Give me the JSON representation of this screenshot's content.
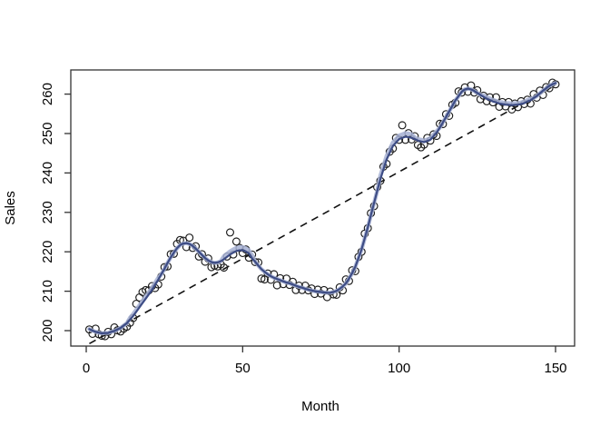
{
  "chart_data": {
    "type": "scatter",
    "title": "",
    "xlabel": "Month",
    "ylabel": "Sales",
    "x_ticks": [
      0,
      50,
      100,
      150
    ],
    "y_ticks": [
      200,
      210,
      220,
      230,
      240,
      250,
      260
    ],
    "xlim": [
      -5,
      156
    ],
    "ylim": [
      196,
      266
    ],
    "grid": "off",
    "legend": "none",
    "x_start_month": 1,
    "n_points": 150,
    "sales": [
      200.3,
      199.2,
      200.5,
      199.1,
      198.7,
      198.6,
      199.7,
      199.1,
      200.8,
      200.1,
      199.8,
      200.5,
      201.0,
      202.0,
      203.2,
      206.8,
      208.4,
      209.8,
      210.3,
      210.2,
      211.3,
      210.8,
      211.7,
      213.7,
      216.1,
      216.3,
      219.4,
      219.5,
      222.0,
      223.0,
      222.8,
      221.2,
      223.6,
      221.0,
      221.4,
      218.8,
      219.4,
      217.5,
      218.3,
      216.1,
      216.5,
      216.3,
      216.8,
      216.0,
      218.8,
      224.9,
      219.3,
      222.6,
      221.0,
      219.7,
      220.6,
      218.5,
      219.3,
      217.4,
      217.3,
      213.2,
      213.0,
      214.5,
      212.9,
      214.3,
      211.5,
      213.3,
      211.8,
      213.2,
      211.6,
      212.4,
      210.3,
      211.4,
      210.3,
      211.4,
      210.2,
      210.7,
      209.3,
      210.4,
      209.4,
      210.3,
      208.5,
      209.9,
      209.2,
      209.1,
      211.0,
      210.2,
      213.0,
      212.6,
      215.3,
      215.1,
      218.7,
      220.0,
      224.6,
      226.0,
      229.8,
      231.6,
      236.4,
      238.0,
      241.6,
      242.3,
      245.4,
      246.2,
      248.9,
      248.4,
      252.1,
      248.4,
      250.1,
      248.5,
      249.3,
      247.1,
      246.5,
      247.2,
      248.9,
      248.2,
      249.8,
      249.4,
      252.5,
      252.4,
      254.9,
      254.5,
      257.3,
      257.8,
      260.7,
      260.4,
      261.7,
      260.6,
      262.2,
      260.4,
      261.0,
      258.7,
      259.6,
      258.2,
      259.2,
      257.9,
      259.2,
      256.8,
      258.0,
      256.9,
      258.0,
      256.1,
      257.6,
      256.7,
      258.2,
      257.5,
      258.6,
      257.6,
      260.0,
      259.1,
      260.9,
      259.8,
      261.8,
      261.5,
      262.9,
      262.5
    ],
    "loess_smooth": [
      200.4,
      200.0,
      199.7,
      199.5,
      199.3,
      199.4,
      199.4,
      199.7,
      199.9,
      200.3,
      200.7,
      201.3,
      201.9,
      202.8,
      203.7,
      204.8,
      205.9,
      207.0,
      208.1,
      209.2,
      210.3,
      211.6,
      212.9,
      214.3,
      215.7,
      217.2,
      218.6,
      219.8,
      220.9,
      221.7,
      222.1,
      222.2,
      222.0,
      221.5,
      220.8,
      220.0,
      219.2,
      218.4,
      217.8,
      217.4,
      217.2,
      217.3,
      217.6,
      218.1,
      218.7,
      219.3,
      219.8,
      220.2,
      220.4,
      220.4,
      220.1,
      219.6,
      218.3,
      217.5,
      216.5,
      215.6,
      214.9,
      214.3,
      213.8,
      213.4,
      213.1,
      212.8,
      212.5,
      212.2,
      212.0,
      211.7,
      211.4,
      211.1,
      210.9,
      210.6,
      210.4,
      210.2,
      210.0,
      209.9,
      209.8,
      209.7,
      209.6,
      209.6,
      209.8,
      210.1,
      210.6,
      211.2,
      212.0,
      213.2,
      214.6,
      216.2,
      218.4,
      220.6,
      223.4,
      226.2,
      229.3,
      232.4,
      235.4,
      238.4,
      240.9,
      243.4,
      245.1,
      246.8,
      247.7,
      248.6,
      248.9,
      249.2,
      249.1,
      248.9,
      248.6,
      248.2,
      248.0,
      247.8,
      248.1,
      248.4,
      249.3,
      250.2,
      251.5,
      252.8,
      254.2,
      255.6,
      257.0,
      258.4,
      259.5,
      260.6,
      261.2,
      261.4,
      261.2,
      260.8,
      260.3,
      259.8,
      259.3,
      258.8,
      258.5,
      258.1,
      257.9,
      257.6,
      257.5,
      257.3,
      257.3,
      257.2,
      257.3,
      257.3,
      257.5,
      257.7,
      258.1,
      258.4,
      259.0,
      259.5,
      260.2,
      260.9,
      261.5,
      262.1,
      262.5,
      262.8
    ],
    "loess_band": [
      200.4,
      200.0,
      199.7,
      199.5,
      199.3,
      199.4,
      199.4,
      199.7,
      199.9,
      200.3,
      200.7,
      201.3,
      201.9,
      203.3,
      204.2,
      205.3,
      206.4,
      207.5,
      208.6,
      209.7,
      210.8,
      212.1,
      213.4,
      214.3,
      215.7,
      217.2,
      218.6,
      219.8,
      220.9,
      221.7,
      222.1,
      222.2,
      222.0,
      221.5,
      220.8,
      220.0,
      219.2,
      218.4,
      217.8,
      217.4,
      217.2,
      217.3,
      217.6,
      218.9,
      219.5,
      220.1,
      220.6,
      221.0,
      221.2,
      221.2,
      220.9,
      220.4,
      219.1,
      217.5,
      216.5,
      215.6,
      214.9,
      214.3,
      213.8,
      213.4,
      213.1,
      212.8,
      212.5,
      212.2,
      212.0,
      211.7,
      211.4,
      211.1,
      210.9,
      210.6,
      210.4,
      210.2,
      210.0,
      209.9,
      209.8,
      209.7,
      209.6,
      209.6,
      209.8,
      210.1,
      210.6,
      211.2,
      212.0,
      213.2,
      214.6,
      216.2,
      218.4,
      220.6,
      223.4,
      226.2,
      229.3,
      232.4,
      235.4,
      239.3,
      241.8,
      244.3,
      246.0,
      247.7,
      248.6,
      249.5,
      249.8,
      250.1,
      250.0,
      249.8,
      249.0,
      248.6,
      248.4,
      248.2,
      248.5,
      248.8,
      249.7,
      250.6,
      251.5,
      252.8,
      254.2,
      255.6,
      257.0,
      258.4,
      259.5,
      260.6,
      261.2,
      261.4,
      261.2,
      260.8,
      260.3,
      259.8,
      259.7,
      259.2,
      258.9,
      258.5,
      258.3,
      258.0,
      257.9,
      257.7,
      257.7,
      257.6,
      257.7,
      257.7,
      257.9,
      258.1,
      258.5,
      258.8,
      259.0,
      259.5,
      260.2,
      260.9,
      261.5,
      262.1,
      262.5,
      262.8
    ],
    "trend_line": {
      "type": "dashed",
      "x": [
        1,
        150
      ],
      "y": [
        196.7,
        262.3
      ]
    },
    "colors": {
      "background": "#ffffff",
      "points_stroke": "#1c1c1c",
      "smooth_line": "#3d4c85",
      "smooth_band": "#a6b0d4",
      "trend_line": "#111111",
      "box": "#333333"
    }
  }
}
